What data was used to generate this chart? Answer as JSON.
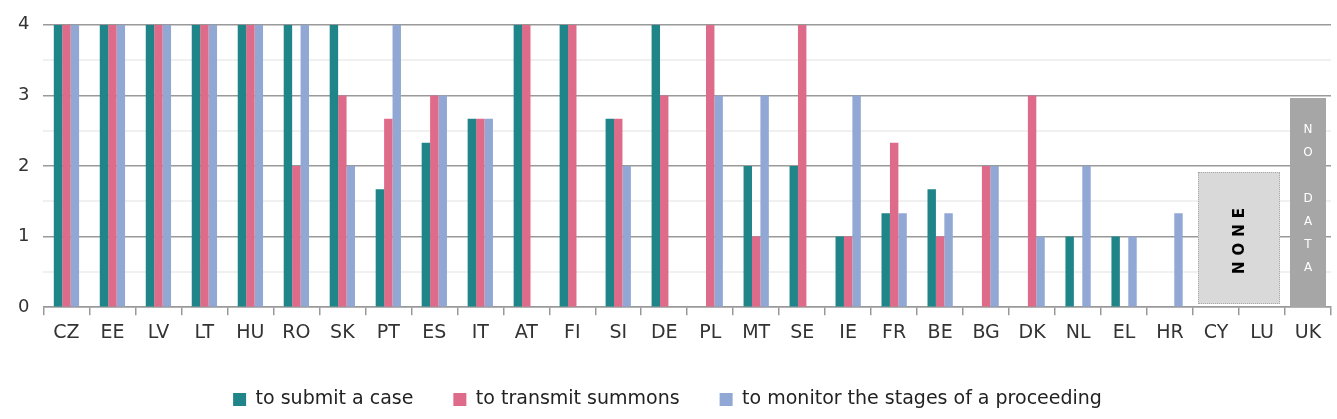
{
  "chart_data": {
    "type": "bar",
    "categories": [
      "CZ",
      "EE",
      "LV",
      "LT",
      "HU",
      "RO",
      "SK",
      "PT",
      "ES",
      "IT",
      "AT",
      "FI",
      "SI",
      "DE",
      "PL",
      "MT",
      "SE",
      "IE",
      "FR",
      "BE",
      "BG",
      "DK",
      "NL",
      "EL",
      "HR",
      "CY",
      "LU",
      "UK"
    ],
    "series": [
      {
        "name": "to submit a case",
        "color": "#1f8589",
        "values": [
          4,
          4,
          4,
          4,
          4,
          4,
          4,
          1.67,
          2.33,
          2.67,
          4,
          4,
          2.67,
          4,
          null,
          2,
          2,
          1,
          1.33,
          1.67,
          null,
          null,
          1,
          1,
          null,
          null,
          null,
          null
        ]
      },
      {
        "name": "to transmit summons",
        "color": "#df6b8a",
        "values": [
          4,
          4,
          4,
          4,
          4,
          2,
          3,
          2.67,
          3,
          2.67,
          4,
          4,
          2.67,
          3,
          4,
          1,
          4,
          1,
          2.33,
          1,
          2,
          3,
          null,
          null,
          null,
          null,
          null,
          null
        ]
      },
      {
        "name": "to monitor the stages of a proceeding",
        "color": "#91a8d4",
        "values": [
          4,
          4,
          4,
          4,
          4,
          4,
          2,
          4,
          3,
          2.67,
          null,
          null,
          2,
          null,
          3,
          3,
          null,
          3,
          1.33,
          1.33,
          2,
          1,
          2,
          1,
          1.33,
          null,
          null,
          null
        ]
      }
    ],
    "ylim": [
      0,
      4
    ],
    "yticks": [
      0,
      {
        "value": 0.5,
        "label": null
      },
      1,
      {
        "value": 1.5,
        "label": null
      },
      2,
      {
        "value": 2.5,
        "label": null
      },
      3,
      {
        "value": 3.5,
        "label": null
      },
      4
    ],
    "grid": "y",
    "legend": "bottom",
    "bands": [
      {
        "axis": "x",
        "from": "CY",
        "to": "LU",
        "label": "NONE",
        "color": "#d9d9d9"
      },
      {
        "axis": "x",
        "from": "UK",
        "to": "UK",
        "label": "NO DATA",
        "color": "#a6a6a6"
      }
    ]
  }
}
